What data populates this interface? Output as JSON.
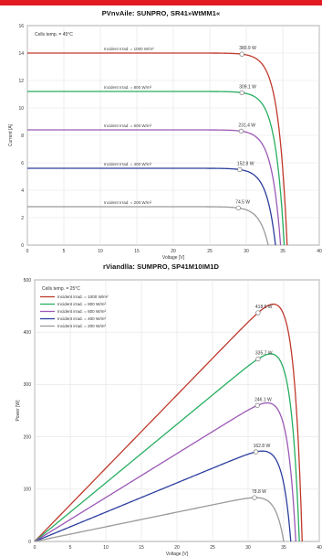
{
  "header_color": "#e21b23",
  "chart_data": [
    {
      "type": "line",
      "title": "PVnvAile: SUNPRO, SR41»WtMM1«",
      "xlabel": "Voltage [V]",
      "ylabel": "Current [A]",
      "xlim": [
        0,
        40
      ],
      "ylim": [
        0,
        16
      ],
      "xticks": [
        0,
        5,
        10,
        15,
        20,
        25,
        30,
        35,
        40
      ],
      "yticks": [
        0,
        2,
        4,
        6,
        8,
        10,
        12,
        14,
        16
      ],
      "grid": true,
      "annotation": "Cells temp. = 45°C",
      "series": [
        {
          "name": "Incident Irrad. = 1000 W/m²",
          "color": "#c0392b",
          "isc": 14.0,
          "voc": 35.6,
          "vmp": 29.4,
          "mpp_label": "380.9 W"
        },
        {
          "name": "Incident Irrad. = 800 W/m²",
          "color": "#27ae60",
          "isc": 11.2,
          "voc": 35.2,
          "vmp": 29.4,
          "mpp_label": "309.1 W"
        },
        {
          "name": "Incident Irrad. = 600 W/m²",
          "color": "#9b59b6",
          "isc": 8.4,
          "voc": 34.7,
          "vmp": 29.3,
          "mpp_label": "231.4 W"
        },
        {
          "name": "Incident Irrad. = 400 W/m²",
          "color": "#2c3e9e",
          "isc": 5.6,
          "voc": 34.0,
          "vmp": 29.1,
          "mpp_label": "152.8 W"
        },
        {
          "name": "Incident Irrad. = 200 W/m²",
          "color": "#9a9a9a",
          "isc": 2.8,
          "voc": 33.0,
          "vmp": 28.9,
          "mpp_label": "74.5 W"
        }
      ]
    },
    {
      "type": "line",
      "title": "rViandlla: SUMPRO, SP41M10IM1D",
      "xlabel": "Voltage [V]",
      "ylabel": "Power [W]",
      "xlim": [
        0,
        40
      ],
      "ylim": [
        0,
        500
      ],
      "xticks": [
        0,
        5,
        10,
        15,
        20,
        25,
        30,
        35,
        40
      ],
      "yticks": [
        0,
        100,
        200,
        300,
        400,
        500
      ],
      "grid": true,
      "annotation": "Cells temp. = 25°C",
      "legend_position": "top-left",
      "series": [
        {
          "name": "Incident irrad. = 1000 W/m²",
          "color": "#c0392b",
          "isc": 14.0,
          "voc": 37.6,
          "vmp": 31.4,
          "mpp_label": "418.5 W"
        },
        {
          "name": "Incident irrad. = 800 W/m²",
          "color": "#27ae60",
          "isc": 11.2,
          "voc": 37.2,
          "vmp": 31.4,
          "mpp_label": "335.7 W"
        },
        {
          "name": "Incident irrad. = 600 W/m²",
          "color": "#9b59b6",
          "isc": 8.4,
          "voc": 36.7,
          "vmp": 31.3,
          "mpp_label": "246.1 W"
        },
        {
          "name": "Incident irrad. = 400 W/m²",
          "color": "#2c3e9e",
          "isc": 5.6,
          "voc": 36.0,
          "vmp": 31.1,
          "mpp_label": "162.8 W"
        },
        {
          "name": "Incident irrad. = 200 W/m²",
          "color": "#9a9a9a",
          "isc": 2.8,
          "voc": 35.0,
          "vmp": 30.9,
          "mpp_label": "78.8 W"
        }
      ]
    }
  ]
}
